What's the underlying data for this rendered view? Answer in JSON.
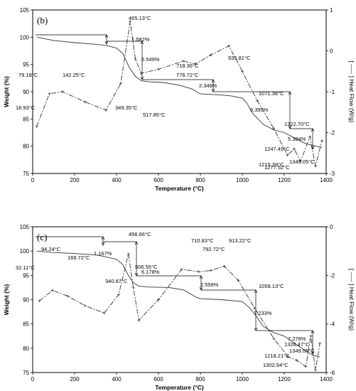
{
  "chart_data": [
    {
      "panel_label": "(b)",
      "type": "line",
      "xlabel": "Temperature (°C)",
      "ylabel": "Weight (%)",
      "y2label": "[ ----- ] Heat Flow (W/g)",
      "xlim": [
        0,
        1400
      ],
      "ylim": [
        75,
        105
      ],
      "y2lim": [
        -3,
        1
      ],
      "xticks": [
        "0",
        "200",
        "400",
        "600",
        "800",
        "1000",
        "1200",
        "1400"
      ],
      "yticks": [
        "75",
        "80",
        "85",
        "90",
        "95",
        "100",
        "105"
      ],
      "y2ticks": [
        "-3",
        "-2",
        "-1",
        "0",
        "1"
      ],
      "series": [
        {
          "style": "solid",
          "axis": "left",
          "x": [
            20,
            100,
            200,
            300,
            350,
            400,
            430,
            460,
            490,
            520,
            560,
            620,
            700,
            760,
            800,
            900,
            950,
            1000,
            1020,
            1050,
            1100,
            1150,
            1200,
            1250,
            1300,
            1350,
            1380
          ],
          "y": [
            100,
            99.4,
            99,
            98.7,
            98.5,
            98,
            97,
            94.5,
            92.8,
            92,
            91.8,
            91.7,
            91.2,
            90.5,
            89.6,
            89.4,
            89.2,
            88.8,
            88,
            86,
            84,
            83,
            82.5,
            81.5,
            80.5,
            80,
            79.8
          ]
        },
        {
          "style": "dashed",
          "axis": "right",
          "x": [
            18.93,
            79.18,
            142.25,
            250,
            349.35,
            420,
            465.13,
            490,
            517.85,
            600,
            718.36,
            776.72,
            850,
            935.81,
            1000,
            1071.36,
            1150,
            1215.39,
            1247.49,
            1277.52,
            1322.7,
            1349.05,
            1380
          ],
          "y": [
            -1.85,
            -1.05,
            -1.0,
            -1.25,
            -1.45,
            -0.8,
            0.72,
            -0.2,
            -0.55,
            -0.45,
            -0.25,
            -0.32,
            -0.1,
            0.12,
            -0.5,
            -1.22,
            -1.9,
            -2.55,
            -2.4,
            -2.7,
            -2.1,
            -2.82,
            -2.2
          ]
        }
      ],
      "peak_labels": [
        "18.93°C",
        "79.18°C",
        "142.25°C",
        "349.35°C",
        "465.13°C",
        "517.85°C",
        "718.36°C",
        "776.72°C",
        "935.81°C",
        "1071.36°C",
        "1215.39°C",
        "1247.49°C",
        "1277.52°C",
        "1322.70°C",
        "1349.05°C"
      ],
      "mass_loss_labels": [
        "1.582%",
        "6.549%",
        "2.348%",
        "6.395%",
        "5.384%"
      ]
    },
    {
      "panel_label": "(c)",
      "type": "line",
      "xlabel": "Temperature (°C)",
      "ylabel": "Weight (%)",
      "y2label": "[ ----- ] Heat Flow (W/g)",
      "xlim": [
        0,
        1400
      ],
      "ylim": [
        75,
        105
      ],
      "y2lim": [
        -6,
        0
      ],
      "xticks": [
        "0",
        "200",
        "400",
        "600",
        "800",
        "1000",
        "1200",
        "1400"
      ],
      "yticks": [
        "75",
        "80",
        "85",
        "90",
        "95",
        "100",
        "105"
      ],
      "y2ticks": [
        "-6",
        "-4",
        "-2",
        "0"
      ],
      "series": [
        {
          "style": "solid",
          "axis": "left",
          "x": [
            20,
            100,
            200,
            300,
            340,
            400,
            430,
            456,
            480,
            506,
            550,
            650,
            720,
            780,
            800,
            900,
            1000,
            1030,
            1060,
            1100,
            1150,
            1200,
            1250,
            1300,
            1340,
            1370
          ],
          "y": [
            100,
            99.7,
            99.5,
            99.2,
            98.9,
            98.3,
            97.2,
            95,
            93.5,
            92.8,
            92.6,
            92.5,
            92,
            90.5,
            90.2,
            90,
            89.6,
            88.5,
            87,
            84.5,
            83.2,
            82.5,
            81,
            79.5,
            78.5,
            78.2
          ]
        },
        {
          "style": "dashed",
          "axis": "right",
          "x": [
            32.11,
            94.24,
            166.72,
            250,
            340.87,
            410,
            456.66,
            480,
            506.55,
            600,
            710.83,
            792.72,
            850,
            913.22,
            980,
            1059.13,
            1150,
            1218.21,
            1260,
            1302.94,
            1326.47,
            1349.05,
            1370
          ],
          "y": [
            -3.05,
            -2.62,
            -2.85,
            -3.25,
            -3.55,
            -2.8,
            -1.12,
            -2.5,
            -3.85,
            -3.0,
            -1.75,
            -1.85,
            -1.8,
            -1.62,
            -2.2,
            -3.35,
            -4.6,
            -5.35,
            -5.5,
            -5.75,
            -4.5,
            -5.9,
            -4.8
          ]
        }
      ],
      "peak_labels": [
        "32.11°C",
        "94.24°C",
        "166.72°C",
        "340.87°C",
        "456.66°C",
        "506.55°C",
        "710.83°C",
        "792.72°C",
        "913.22°C",
        "1059.13°C",
        "1218.21°C",
        "1302.94°C",
        "1326.47°C",
        "1349.05°C"
      ],
      "mass_loss_labels": [
        "1.167%",
        "6.178%",
        "2.558%",
        "7.233%",
        "7.278%"
      ]
    }
  ]
}
